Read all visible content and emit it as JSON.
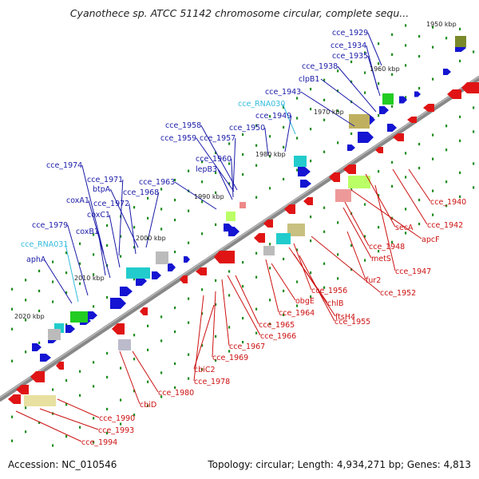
{
  "header": {
    "title": "Cyanothece sp. ATCC 51142 chromosome circular, complete sequ..."
  },
  "footer": {
    "accession": "Accession: NC_010546",
    "stats": "Topology: circular; Length: 4,934,271 bp; Genes: 4,813"
  },
  "colors": {
    "top_strand_labels": "#1a1aa8",
    "rna_labels": "#33bbdd",
    "bottom_strand_labels": "#cc1111",
    "backbone": "#888888",
    "tick_marks": "#1e8c1e"
  },
  "kbp_labels": [
    "1950 kbp",
    "1960 kbp",
    "1970 kbp",
    "1980 kbp",
    "1990 kbp",
    "2000 kbp",
    "2010 kbp",
    "2020 kbp"
  ],
  "top_labels": [
    "cce_1929",
    "cce_1934",
    "cce_1935",
    "cce_1938",
    "clpB1",
    "cce_1943",
    "cce_RNA030",
    "cce_1949",
    "cce_1950",
    "cce_1958",
    "cce_1959",
    "cce_1957",
    "cce_1960",
    "lepB3",
    "cce_1963",
    "cce_1974",
    "cce_1971",
    "btpA",
    "cce_1968",
    "cce_1972",
    "coxA1",
    "coxC1",
    "cce_1979",
    "coxB1",
    "cce_RNA031",
    "aphA"
  ],
  "bottom_labels": [
    "cce_1940",
    "cce_1942",
    "secA",
    "apcF",
    "cce_1948",
    "metS",
    "cce_1947",
    "fur2",
    "cce_1952",
    "cce_1956",
    "chlB",
    "ftsH4",
    "obgE",
    "cce_1964",
    "cce_1955",
    "cce_1965",
    "cce_1966",
    "cce_1967",
    "cce_1969",
    "cbiC2",
    "cce_1978",
    "cce_1980",
    "cbiD",
    "cce_1990",
    "cce_1993",
    "cce_1994"
  ]
}
